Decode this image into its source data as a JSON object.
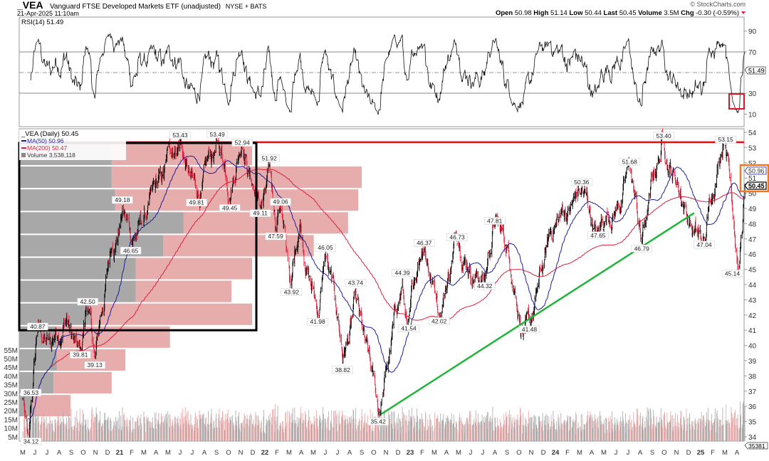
{
  "header": {
    "symbol": "_VEA",
    "name": "Vanguard FTSE Developed Markets ETF (unadjusted)",
    "exchange": "NYSE + BATS",
    "datetime": "21-Apr-2025 11:10am",
    "copyright": "© StockCharts.com",
    "open_label": "Open",
    "open": "50.98",
    "high_label": "High",
    "high": "51.14",
    "low_label": "Low",
    "low": "50.44",
    "last_label": "Last",
    "last": "50.45",
    "volume_label": "Volume",
    "volume": "3.5M",
    "chg_label": "Chg",
    "chg": "-0.30 (-0.59%)",
    "chg_icon": "down-triangle-icon"
  },
  "rsi_panel": {
    "legend": "RSI(14) 51.49",
    "current": "51.49",
    "ticks": [
      "90",
      "70",
      "30",
      "10"
    ],
    "overbought": 70,
    "oversold": 30
  },
  "price_panel": {
    "legend_title": "_VEA (Daily) 50.45",
    "legend_ma50": "MA(50) 50.96",
    "legend_ma200": "MA(200) 50.47",
    "legend_volume": "Volume 3,538,118",
    "ma50_tag": "50.96",
    "last_tag": "50.45",
    "volume_tag": "35381",
    "colors": {
      "up": "#000000",
      "down": "#e0203a",
      "ma50": "#1c1c9c",
      "ma200": "#d8203c",
      "volume_up": "#a8a8a8",
      "volume_down": "#e4a4a4",
      "resistance": "#e81010",
      "trendline": "#22b43a",
      "box": "#000000",
      "rsi_highlight": "#e81020",
      "price_highlight": "#f07820"
    }
  },
  "chart_data": {
    "type": "ohlc",
    "title": "_VEA (Daily)",
    "y_axis": {
      "min": 34,
      "max": 54,
      "ticks": [
        "34",
        "35",
        "36",
        "37",
        "38",
        "39",
        "40",
        "41",
        "42",
        "43",
        "44",
        "45",
        "46",
        "47",
        "48",
        "49",
        "50",
        "51",
        "52",
        "53",
        "54"
      ],
      "side": "right"
    },
    "volume_axis": {
      "ticks": [
        "5M",
        "10M",
        "15M",
        "20M",
        "25M",
        "30M",
        "35M",
        "40M",
        "45M",
        "50M",
        "55M"
      ],
      "side": "left"
    },
    "x_axis": {
      "start": "2020-05-01",
      "end": "2025-04-21",
      "ticks": [
        "M",
        "J",
        "J",
        "A",
        "S",
        "O",
        "N",
        "D",
        "21",
        "F",
        "M",
        "A",
        "M",
        "J",
        "J",
        "A",
        "S",
        "O",
        "N",
        "D",
        "22",
        "F",
        "M",
        "A",
        "M",
        "J",
        "J",
        "A",
        "S",
        "O",
        "N",
        "D",
        "23",
        "F",
        "M",
        "A",
        "M",
        "J",
        "J",
        "A",
        "S",
        "O",
        "N",
        "D",
        "24",
        "F",
        "M",
        "A",
        "M",
        "J",
        "J",
        "A",
        "S",
        "O",
        "N",
        "D",
        "25",
        "F",
        "M",
        "A"
      ]
    },
    "price_points": [
      [
        "2020-05-01",
        36.53,
        "high"
      ],
      [
        "2020-05-15",
        34.12,
        "low"
      ],
      [
        "2020-06-08",
        40.87,
        "high"
      ],
      [
        "2020-07-10",
        39.9,
        null
      ],
      [
        "2020-08-20",
        41.9,
        null
      ],
      [
        "2020-09-24",
        39.81,
        "low"
      ],
      [
        "2020-10-12",
        42.5,
        "high"
      ],
      [
        "2020-10-30",
        39.13,
        "low"
      ],
      [
        "2020-12-10",
        46.3,
        null
      ],
      [
        "2021-01-08",
        49.18,
        "high"
      ],
      [
        "2021-01-29",
        46.65,
        "low"
      ],
      [
        "2021-03-15",
        49.8,
        null
      ],
      [
        "2021-04-20",
        51.2,
        null
      ],
      [
        "2021-06-01",
        53.43,
        "high"
      ],
      [
        "2021-07-12",
        49.81,
        "low"
      ],
      [
        "2021-09-03",
        53.49,
        "high"
      ],
      [
        "2021-10-04",
        49.45,
        "low"
      ],
      [
        "2021-11-05",
        52.94,
        "high"
      ],
      [
        "2021-12-20",
        49.11,
        "low"
      ],
      [
        "2022-01-12",
        51.92,
        "high"
      ],
      [
        "2022-01-28",
        47.59,
        "low"
      ],
      [
        "2022-02-10",
        49.06,
        "high"
      ],
      [
        "2022-03-07",
        43.92,
        "low"
      ],
      [
        "2022-03-29",
        48.2,
        null
      ],
      [
        "2022-05-12",
        41.98,
        "low"
      ],
      [
        "2022-06-01",
        46.05,
        "high"
      ],
      [
        "2022-07-14",
        38.82,
        "low"
      ],
      [
        "2022-08-16",
        43.74,
        "high"
      ],
      [
        "2022-10-12",
        35.42,
        "low"
      ],
      [
        "2022-12-12",
        44.39,
        "high"
      ],
      [
        "2022-12-28",
        41.54,
        "low"
      ],
      [
        "2023-02-06",
        46.37,
        "high"
      ],
      [
        "2023-03-13",
        42.02,
        "low"
      ],
      [
        "2023-04-28",
        46.73,
        "high"
      ],
      [
        "2023-07-06",
        44.32,
        "low"
      ],
      [
        "2023-07-31",
        47.81,
        "high"
      ],
      [
        "2023-10-27",
        41.48,
        "low"
      ],
      [
        "2023-12-28",
        47.6,
        null
      ],
      [
        "2024-03-06",
        50.36,
        "high"
      ],
      [
        "2024-04-17",
        47.65,
        "low"
      ],
      [
        "2024-07-05",
        51.68,
        "high"
      ],
      [
        "2024-08-05",
        46.79,
        "low"
      ],
      [
        "2024-09-30",
        53.4,
        "high"
      ],
      [
        "2024-11-20",
        49.2,
        null
      ],
      [
        "2025-01-10",
        47.04,
        "low"
      ],
      [
        "2025-03-03",
        53.15,
        "high"
      ],
      [
        "2025-04-07",
        45.14,
        "low"
      ],
      [
        "2025-04-21",
        50.45,
        null
      ]
    ],
    "volume_by_price": {
      "band_width": 1.5,
      "bands": [
        {
          "top": 53.3,
          "up": 27,
          "down": 41
        },
        {
          "top": 51.8,
          "up": 27,
          "down": 73
        },
        {
          "top": 50.3,
          "up": 28,
          "down": 71
        },
        {
          "top": 48.8,
          "up": 48,
          "down": 48
        },
        {
          "top": 47.3,
          "up": 42,
          "down": 44
        },
        {
          "top": 45.8,
          "up": 34,
          "down": 34
        },
        {
          "top": 44.3,
          "up": 34,
          "down": 28
        },
        {
          "top": 42.8,
          "up": 21,
          "down": 47
        },
        {
          "top": 41.3,
          "up": 11,
          "down": 33
        },
        {
          "top": 39.8,
          "up": 11,
          "down": 20
        },
        {
          "top": 38.3,
          "up": 10,
          "down": 17
        },
        {
          "top": 36.8,
          "up": 4,
          "down": 11
        }
      ]
    },
    "annotations": {
      "resistance_level": 53.35,
      "trendline": [
        [
          "2022-10-20",
          35.5
        ],
        [
          "2024-12-15",
          48.7
        ]
      ],
      "box": {
        "from": "2020-05-01",
        "to": "2021-12-10",
        "top": 53.3,
        "bottom": 41.0
      }
    }
  }
}
